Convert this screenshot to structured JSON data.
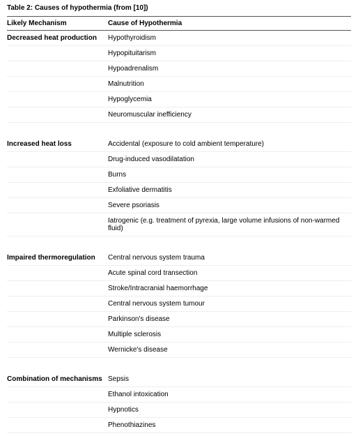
{
  "title": "Table 2: Causes of hypothermia (from [10])",
  "headers": {
    "mechanism": "Likely Mechanism",
    "cause": "Cause of Hypothermia"
  },
  "groups": [
    {
      "mechanism": "Decreased heat production",
      "causes": [
        "Hypothyroidism",
        "Hypopituitarism",
        "Hypoadrenalism",
        "Malnutrition",
        "Hypoglycemia",
        "Neuromuscular inefficiency"
      ]
    },
    {
      "mechanism": "Increased heat loss",
      "causes": [
        "Accidental (exposure to cold ambient temperature)",
        "Drug-induced vasodilatation",
        "Burns",
        "Exfoliative dermatitis",
        "Severe psoriasis",
        "Iatrogenic (e.g. treatment of pyrexia, large volume infusions of non-warmed fluid)"
      ]
    },
    {
      "mechanism": "Impaired thermoregulation",
      "causes": [
        "Central nervous system trauma",
        "Acute spinal cord transection",
        "Stroke/Intracranial haemorrhage",
        "Central nervous system tumour",
        "Parkinson's disease",
        "Multiple sclerosis",
        "Wernicke's disease"
      ]
    },
    {
      "mechanism": "Combination of mechanisms",
      "causes": [
        "Sepsis",
        "Ethanol intoxication",
        "Hypnotics",
        "Phenothiazines"
      ]
    }
  ]
}
